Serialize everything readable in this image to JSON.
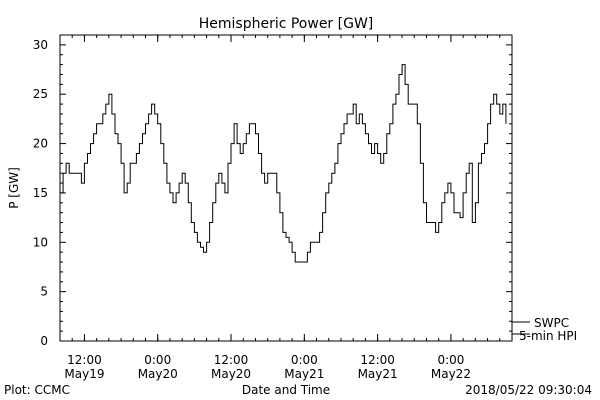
{
  "chart_data": {
    "type": "line",
    "title": "Hemispheric Power [GW]",
    "ylabel": "P [GW]",
    "xlabel": "Date and Time",
    "ylim": [
      0,
      31
    ],
    "xlim": [
      "2018-05-19T08:00",
      "2018-05-22T10:00"
    ],
    "y_ticks": [
      0,
      5,
      10,
      15,
      20,
      25,
      30
    ],
    "x_ticks": [
      {
        "t": "2018-05-19T12:00",
        "time": "12:00",
        "date": "May19"
      },
      {
        "t": "2018-05-20T00:00",
        "time": "0:00",
        "date": "May20"
      },
      {
        "t": "2018-05-20T12:00",
        "time": "12:00",
        "date": "May20"
      },
      {
        "t": "2018-05-21T00:00",
        "time": "0:00",
        "date": "May21"
      },
      {
        "t": "2018-05-21T12:00",
        "time": "12:00",
        "date": "May21"
      },
      {
        "t": "2018-05-22T00:00",
        "time": "0:00",
        "date": "May22"
      }
    ],
    "legend_placement": "bottom-right",
    "series": [
      {
        "name": "SWPC",
        "color": "#000000",
        "points": [
          [
            "2018-05-19T08:00",
            15
          ],
          [
            "2018-05-19T08:30",
            17
          ],
          [
            "2018-05-19T09:00",
            18
          ],
          [
            "2018-05-19T09:30",
            17
          ],
          [
            "2018-05-19T10:00",
            17
          ],
          [
            "2018-05-19T11:00",
            17
          ],
          [
            "2018-05-19T11:30",
            16
          ],
          [
            "2018-05-19T12:00",
            18
          ],
          [
            "2018-05-19T12:30",
            19
          ],
          [
            "2018-05-19T13:00",
            20
          ],
          [
            "2018-05-19T13:30",
            21
          ],
          [
            "2018-05-19T14:00",
            22
          ],
          [
            "2018-05-19T15:00",
            23
          ],
          [
            "2018-05-19T15:30",
            24
          ],
          [
            "2018-05-19T16:00",
            25
          ],
          [
            "2018-05-19T16:30",
            23
          ],
          [
            "2018-05-19T17:00",
            21
          ],
          [
            "2018-05-19T17:30",
            20
          ],
          [
            "2018-05-19T18:00",
            18
          ],
          [
            "2018-05-19T18:30",
            15
          ],
          [
            "2018-05-19T19:00",
            16
          ],
          [
            "2018-05-19T19:30",
            18
          ],
          [
            "2018-05-19T20:00",
            18
          ],
          [
            "2018-05-19T20:30",
            19
          ],
          [
            "2018-05-19T21:00",
            20
          ],
          [
            "2018-05-19T21:30",
            21
          ],
          [
            "2018-05-19T22:00",
            22
          ],
          [
            "2018-05-19T22:30",
            23
          ],
          [
            "2018-05-19T23:00",
            24
          ],
          [
            "2018-05-19T23:30",
            23
          ],
          [
            "2018-05-20T00:00",
            22
          ],
          [
            "2018-05-20T00:30",
            20
          ],
          [
            "2018-05-20T01:00",
            18
          ],
          [
            "2018-05-20T01:30",
            16
          ],
          [
            "2018-05-20T02:00",
            15
          ],
          [
            "2018-05-20T02:30",
            14
          ],
          [
            "2018-05-20T03:00",
            15
          ],
          [
            "2018-05-20T03:30",
            16
          ],
          [
            "2018-05-20T04:00",
            17
          ],
          [
            "2018-05-20T04:30",
            16
          ],
          [
            "2018-05-20T05:00",
            14
          ],
          [
            "2018-05-20T05:30",
            12
          ],
          [
            "2018-05-20T06:00",
            11
          ],
          [
            "2018-05-20T06:30",
            10
          ],
          [
            "2018-05-20T07:00",
            9.5
          ],
          [
            "2018-05-20T07:30",
            9
          ],
          [
            "2018-05-20T08:00",
            10
          ],
          [
            "2018-05-20T08:30",
            12
          ],
          [
            "2018-05-20T09:00",
            14
          ],
          [
            "2018-05-20T09:30",
            16
          ],
          [
            "2018-05-20T10:00",
            17
          ],
          [
            "2018-05-20T10:30",
            16
          ],
          [
            "2018-05-20T11:00",
            15
          ],
          [
            "2018-05-20T11:30",
            18
          ],
          [
            "2018-05-20T12:00",
            20
          ],
          [
            "2018-05-20T12:30",
            22
          ],
          [
            "2018-05-20T13:00",
            20
          ],
          [
            "2018-05-20T13:30",
            19
          ],
          [
            "2018-05-20T14:00",
            20
          ],
          [
            "2018-05-20T14:30",
            21
          ],
          [
            "2018-05-20T15:00",
            22
          ],
          [
            "2018-05-20T16:00",
            21
          ],
          [
            "2018-05-20T16:30",
            19
          ],
          [
            "2018-05-20T17:00",
            17
          ],
          [
            "2018-05-20T17:30",
            16
          ],
          [
            "2018-05-20T18:00",
            17
          ],
          [
            "2018-05-20T19:00",
            17
          ],
          [
            "2018-05-20T19:30",
            15
          ],
          [
            "2018-05-20T20:00",
            13
          ],
          [
            "2018-05-20T20:30",
            11
          ],
          [
            "2018-05-20T21:00",
            10.5
          ],
          [
            "2018-05-20T21:30",
            10
          ],
          [
            "2018-05-20T22:00",
            9
          ],
          [
            "2018-05-20T22:30",
            8
          ],
          [
            "2018-05-21T00:00",
            8
          ],
          [
            "2018-05-21T00:30",
            9
          ],
          [
            "2018-05-21T01:00",
            10
          ],
          [
            "2018-05-21T02:00",
            10
          ],
          [
            "2018-05-21T02:30",
            11
          ],
          [
            "2018-05-21T03:00",
            13
          ],
          [
            "2018-05-21T03:30",
            15
          ],
          [
            "2018-05-21T04:00",
            16
          ],
          [
            "2018-05-21T04:30",
            17
          ],
          [
            "2018-05-21T05:00",
            18
          ],
          [
            "2018-05-21T05:30",
            20
          ],
          [
            "2018-05-21T06:00",
            21
          ],
          [
            "2018-05-21T06:30",
            22
          ],
          [
            "2018-05-21T07:00",
            23
          ],
          [
            "2018-05-21T07:30",
            23
          ],
          [
            "2018-05-21T08:00",
            24
          ],
          [
            "2018-05-21T08:30",
            22
          ],
          [
            "2018-05-21T09:00",
            23
          ],
          [
            "2018-05-21T09:30",
            22
          ],
          [
            "2018-05-21T10:00",
            21
          ],
          [
            "2018-05-21T10:30",
            20
          ],
          [
            "2018-05-21T11:00",
            19
          ],
          [
            "2018-05-21T11:30",
            20
          ],
          [
            "2018-05-21T12:00",
            19
          ],
          [
            "2018-05-21T12:30",
            18
          ],
          [
            "2018-05-21T13:00",
            19
          ],
          [
            "2018-05-21T13:30",
            21
          ],
          [
            "2018-05-21T14:00",
            22
          ],
          [
            "2018-05-21T14:30",
            24
          ],
          [
            "2018-05-21T15:00",
            25
          ],
          [
            "2018-05-21T15:30",
            27
          ],
          [
            "2018-05-21T16:00",
            28
          ],
          [
            "2018-05-21T16:30",
            26
          ],
          [
            "2018-05-21T17:00",
            24
          ],
          [
            "2018-05-21T18:00",
            24
          ],
          [
            "2018-05-21T18:30",
            22
          ],
          [
            "2018-05-21T19:00",
            18
          ],
          [
            "2018-05-21T19:30",
            14
          ],
          [
            "2018-05-21T20:00",
            12
          ],
          [
            "2018-05-21T21:00",
            12
          ],
          [
            "2018-05-21T21:30",
            11
          ],
          [
            "2018-05-21T22:00",
            12
          ],
          [
            "2018-05-21T22:30",
            14
          ],
          [
            "2018-05-21T23:00",
            15
          ],
          [
            "2018-05-21T23:30",
            16
          ],
          [
            "2018-05-22T00:00",
            15
          ],
          [
            "2018-05-22T00:30",
            13
          ],
          [
            "2018-05-22T01:30",
            12.5
          ],
          [
            "2018-05-22T02:00",
            15
          ],
          [
            "2018-05-22T02:30",
            17
          ],
          [
            "2018-05-22T03:00",
            18
          ],
          [
            "2018-05-22T03:30",
            12
          ],
          [
            "2018-05-22T04:00",
            14
          ],
          [
            "2018-05-22T04:30",
            18
          ],
          [
            "2018-05-22T05:00",
            19
          ],
          [
            "2018-05-22T05:30",
            20
          ],
          [
            "2018-05-22T06:00",
            22
          ],
          [
            "2018-05-22T06:30",
            24
          ],
          [
            "2018-05-22T07:00",
            25
          ],
          [
            "2018-05-22T07:30",
            24
          ],
          [
            "2018-05-22T08:00",
            23
          ],
          [
            "2018-05-22T08:30",
            24
          ],
          [
            "2018-05-22T09:00",
            22
          ]
        ]
      },
      {
        "name": "5-min HPI",
        "color": "#000000",
        "points": []
      }
    ]
  },
  "footer": {
    "left": "Plot: CCMC",
    "right": "2018/05/22 09:30:04"
  }
}
